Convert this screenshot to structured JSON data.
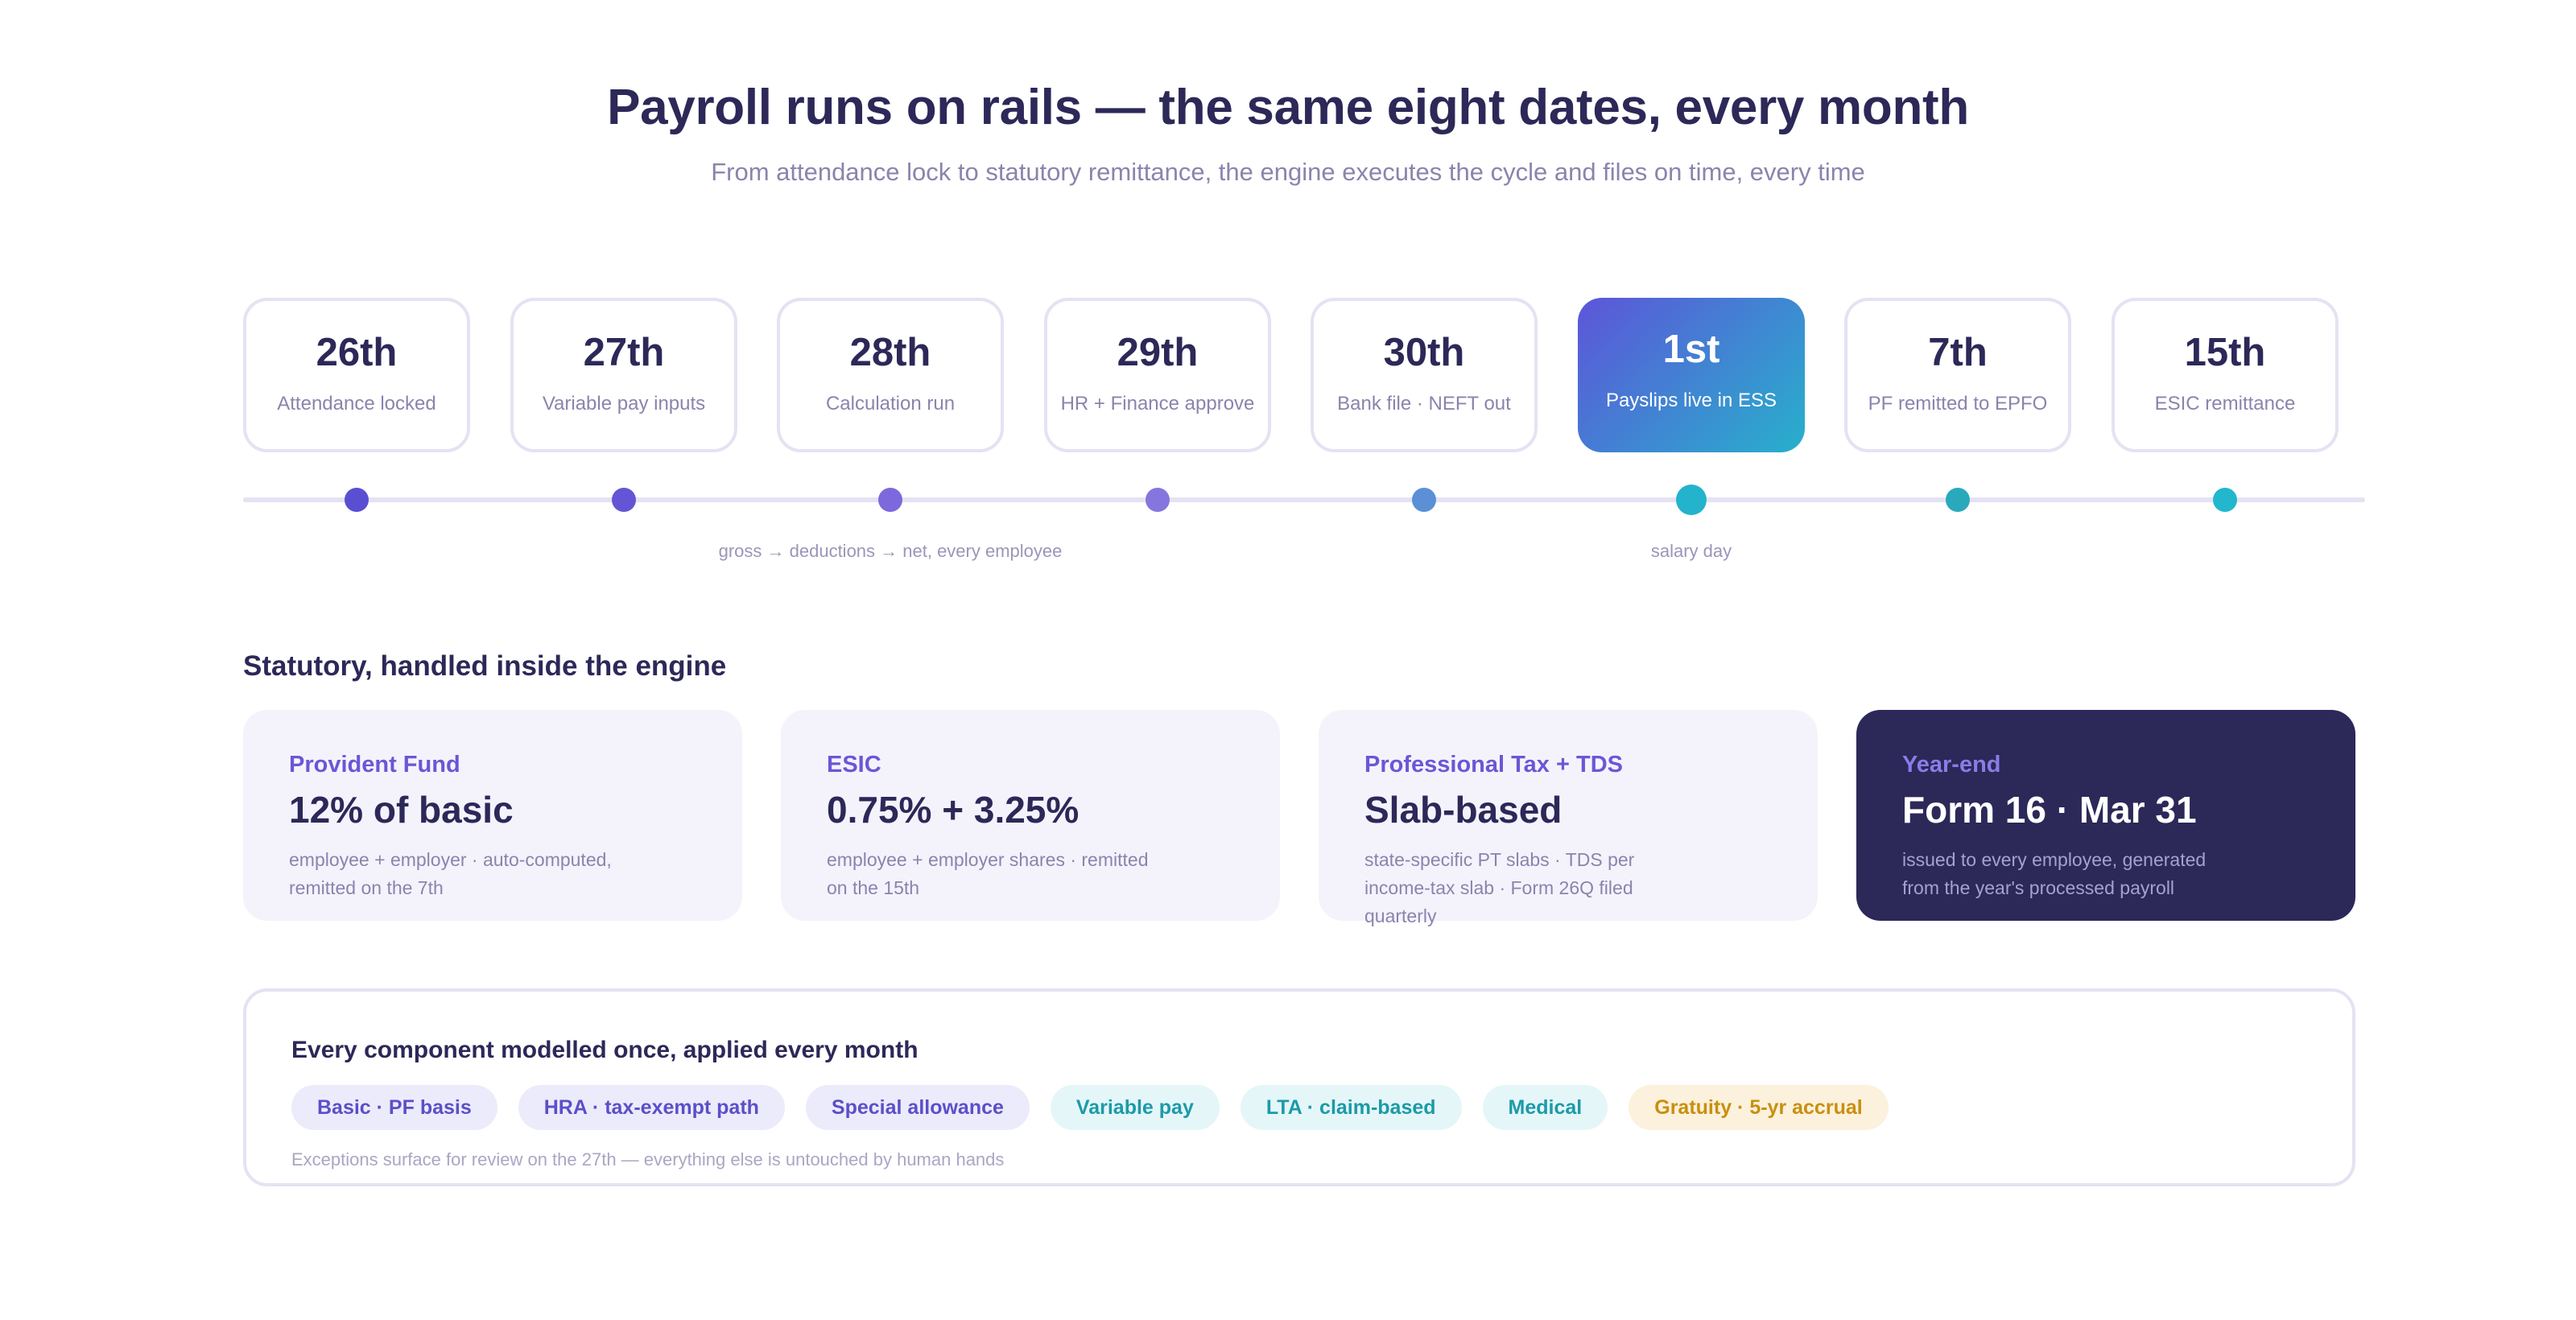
{
  "header": {
    "title": "Payroll runs on rails — the same eight dates, every month",
    "subtitle": "From attendance lock to statutory remittance, the engine executes the cycle and files on time, every time"
  },
  "timeline": {
    "steps": [
      {
        "date": "26th",
        "label": "Attendance locked"
      },
      {
        "date": "27th",
        "label": "Variable pay inputs"
      },
      {
        "date": "28th",
        "label": "Calculation run",
        "note": "gross → deductions → net, every employee"
      },
      {
        "date": "29th",
        "label": "HR + Finance approve"
      },
      {
        "date": "30th",
        "label": "Bank file · NEFT out"
      },
      {
        "date": "1st",
        "label": "Payslips live in ESS",
        "note": "salary day",
        "highlight": true
      },
      {
        "date": "7th",
        "label": "PF remitted to EPFO"
      },
      {
        "date": "15th",
        "label": "ESIC remittance"
      }
    ],
    "dot_colors": [
      "#5a4fd3",
      "#6455d6",
      "#7d68dd",
      "#8476de",
      "#5b8fd6",
      "#24b3cc",
      "#2aa9bc",
      "#22b7cc"
    ]
  },
  "statutory": {
    "title": "Statutory, handled inside the engine",
    "cards": [
      {
        "kicker": "Provident Fund",
        "value": "12% of basic",
        "desc": "employee + employer · auto-computed, remitted on the 7th"
      },
      {
        "kicker": "ESIC",
        "value": "0.75% + 3.25%",
        "desc": "employee + employer shares · remitted on the 15th"
      },
      {
        "kicker": "Professional Tax + TDS",
        "value": "Slab-based",
        "desc": "state-specific PT slabs · TDS per income-tax slab · Form 26Q filed quarterly"
      },
      {
        "kicker": "Year-end",
        "value": "Form 16 · Mar 31",
        "desc": "issued to every employee, generated from the year's processed payroll"
      }
    ]
  },
  "components": {
    "title": "Every component modelled once, applied every month",
    "chips": [
      {
        "label": "Basic · PF basis",
        "tone": "purple"
      },
      {
        "label": "HRA · tax-exempt path",
        "tone": "purple"
      },
      {
        "label": "Special allowance",
        "tone": "purple"
      },
      {
        "label": "Variable pay",
        "tone": "teal"
      },
      {
        "label": "LTA · claim-based",
        "tone": "teal"
      },
      {
        "label": "Medical",
        "tone": "teal"
      },
      {
        "label": "Gratuity · 5-yr accrual",
        "tone": "amber"
      }
    ],
    "note": "Exceptions surface for review on the 27th — everything else is untouched by human hands"
  }
}
